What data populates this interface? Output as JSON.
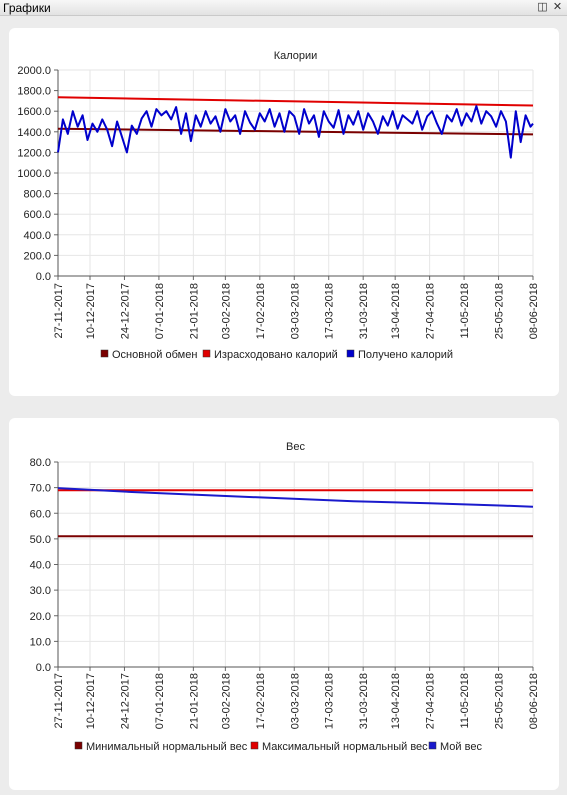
{
  "window": {
    "title": "Графики",
    "float_icon": "restore-window-icon",
    "close_icon": "close-icon"
  },
  "colors": {
    "bmr": "#7a0000",
    "spent": "#e00000",
    "intake": "#0000cc",
    "min_weight": "#7a0000",
    "max_weight": "#e00000",
    "my_weight": "#1a1acc",
    "grid": "#e6e6e6"
  },
  "chart_data": [
    {
      "type": "line",
      "title": "Калории",
      "xlabel": "",
      "ylabel": "",
      "x_range": [
        "27-11-2017",
        "08-06-2018"
      ],
      "x_ticks": [
        "27-11-2017",
        "10-12-2017",
        "24-12-2017",
        "07-01-2018",
        "21-01-2018",
        "03-02-2018",
        "17-02-2018",
        "03-03-2018",
        "17-03-2018",
        "31-03-2018",
        "13-04-2018",
        "27-04-2018",
        "11-05-2018",
        "25-05-2018",
        "08-06-2018"
      ],
      "ylim": [
        0,
        2000
      ],
      "y_ticks": [
        "0.0",
        "200.0",
        "400.0",
        "600.0",
        "800.0",
        "1000.0",
        "1200.0",
        "1400.0",
        "1600.0",
        "1800.0",
        "2000.0"
      ],
      "grid": true,
      "legend_position": "bottom",
      "series": [
        {
          "name": "Основной обмен",
          "x": [
            "27-11-2017",
            "08-06-2018"
          ],
          "values": [
            1430,
            1375
          ]
        },
        {
          "name": "Израсходовано калорий",
          "x": [
            "27-11-2017",
            "08-06-2018"
          ],
          "values": [
            1735,
            1655
          ]
        },
        {
          "name": "Получено калорий",
          "x": [
            "27-11-2017",
            "29-11-2017",
            "01-12-2017",
            "03-12-2017",
            "05-12-2017",
            "07-12-2017",
            "09-12-2017",
            "11-12-2017",
            "13-12-2017",
            "15-12-2017",
            "17-12-2017",
            "19-12-2017",
            "21-12-2017",
            "23-12-2017",
            "25-12-2017",
            "27-12-2017",
            "29-12-2017",
            "31-12-2017",
            "02-01-2018",
            "04-01-2018",
            "06-01-2018",
            "08-01-2018",
            "10-01-2018",
            "12-01-2018",
            "14-01-2018",
            "16-01-2018",
            "18-01-2018",
            "20-01-2018",
            "22-01-2018",
            "24-01-2018",
            "26-01-2018",
            "28-01-2018",
            "30-01-2018",
            "01-02-2018",
            "03-02-2018",
            "05-02-2018",
            "07-02-2018",
            "09-02-2018",
            "11-02-2018",
            "13-02-2018",
            "15-02-2018",
            "17-02-2018",
            "19-02-2018",
            "21-02-2018",
            "23-02-2018",
            "25-02-2018",
            "27-02-2018",
            "01-03-2018",
            "03-03-2018",
            "05-03-2018",
            "07-03-2018",
            "09-03-2018",
            "11-03-2018",
            "13-03-2018",
            "15-03-2018",
            "17-03-2018",
            "19-03-2018",
            "21-03-2018",
            "23-03-2018",
            "25-03-2018",
            "27-03-2018",
            "29-03-2018",
            "31-03-2018",
            "02-04-2018",
            "04-04-2018",
            "06-04-2018",
            "08-04-2018",
            "10-04-2018",
            "12-04-2018",
            "14-04-2018",
            "16-04-2018",
            "18-04-2018",
            "20-04-2018",
            "22-04-2018",
            "24-04-2018",
            "26-04-2018",
            "28-04-2018",
            "30-04-2018",
            "02-05-2018",
            "04-05-2018",
            "06-05-2018",
            "08-05-2018",
            "10-05-2018",
            "12-05-2018",
            "14-05-2018",
            "16-05-2018",
            "18-05-2018",
            "20-05-2018",
            "22-05-2018",
            "24-05-2018",
            "26-05-2018",
            "28-05-2018",
            "30-05-2018",
            "01-06-2018",
            "03-06-2018",
            "05-06-2018",
            "07-06-2018",
            "08-06-2018"
          ],
          "values": [
            1200,
            1520,
            1380,
            1600,
            1450,
            1560,
            1320,
            1480,
            1400,
            1520,
            1420,
            1260,
            1500,
            1350,
            1200,
            1460,
            1380,
            1530,
            1600,
            1450,
            1620,
            1560,
            1600,
            1520,
            1640,
            1380,
            1580,
            1310,
            1560,
            1450,
            1600,
            1480,
            1550,
            1400,
            1620,
            1500,
            1560,
            1380,
            1600,
            1490,
            1420,
            1580,
            1500,
            1620,
            1450,
            1580,
            1400,
            1600,
            1550,
            1380,
            1620,
            1480,
            1560,
            1350,
            1600,
            1500,
            1440,
            1610,
            1380,
            1560,
            1470,
            1600,
            1420,
            1580,
            1500,
            1380,
            1550,
            1460,
            1600,
            1430,
            1560,
            1520,
            1480,
            1600,
            1420,
            1550,
            1600,
            1480,
            1380,
            1560,
            1500,
            1620,
            1460,
            1580,
            1500,
            1650,
            1480,
            1600,
            1550,
            1450,
            1600,
            1500,
            1150,
            1600,
            1300,
            1560,
            1450,
            1480
          ]
        }
      ]
    },
    {
      "type": "line",
      "title": "Вес",
      "xlabel": "",
      "ylabel": "",
      "x_range": [
        "27-11-2017",
        "08-06-2018"
      ],
      "x_ticks": [
        "27-11-2017",
        "10-12-2017",
        "24-12-2017",
        "07-01-2018",
        "21-01-2018",
        "03-02-2018",
        "17-02-2018",
        "03-03-2018",
        "17-03-2018",
        "31-03-2018",
        "13-04-2018",
        "27-04-2018",
        "11-05-2018",
        "25-05-2018",
        "08-06-2018"
      ],
      "ylim": [
        0,
        80
      ],
      "y_ticks": [
        "0.0",
        "10.0",
        "20.0",
        "30.0",
        "40.0",
        "50.0",
        "60.0",
        "70.0",
        "80.0"
      ],
      "grid": true,
      "legend_position": "bottom",
      "series": [
        {
          "name": "Минимальный нормальный вес",
          "x": [
            "27-11-2017",
            "08-06-2018"
          ],
          "values": [
            51.0,
            51.0
          ]
        },
        {
          "name": "Максимальный нормальный вес",
          "x": [
            "27-11-2017",
            "08-06-2018"
          ],
          "values": [
            69.0,
            69.0
          ]
        },
        {
          "name": "Мой вес",
          "x": [
            "27-11-2017",
            "27-12-2017",
            "27-01-2018",
            "27-02-2018",
            "27-03-2018",
            "27-04-2018",
            "27-05-2018",
            "08-06-2018"
          ],
          "values": [
            69.8,
            68.3,
            67.0,
            65.8,
            64.7,
            63.9,
            63.0,
            62.5
          ]
        }
      ]
    }
  ]
}
